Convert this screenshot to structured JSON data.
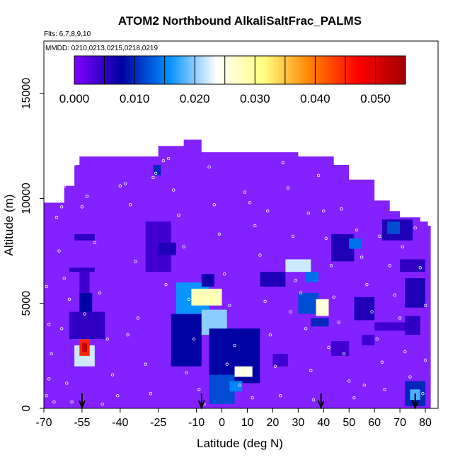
{
  "chart_data": {
    "type": "heatmap",
    "title": "ATOM2 Northbound AlkaliSaltFrac_PALMS",
    "subtitle_flights": "Flts: 6,7,8,9,10",
    "subtitle_dates": "MMDD: 0210,0213,0215,0218,0219",
    "xlabel": "Latitude (deg N)",
    "ylabel": "Altitude (m)",
    "xlim": [
      -70,
      85
    ],
    "ylim": [
      0,
      17500
    ],
    "x_ticks": [
      "-70",
      "-55",
      "-40",
      "-25",
      "-10",
      "0",
      "10",
      "20",
      "30",
      "40",
      "50",
      "60",
      "70",
      "80"
    ],
    "x_tick_values": [
      -70,
      -55,
      -40,
      -25,
      -10,
      0,
      10,
      20,
      30,
      40,
      50,
      60,
      70,
      80
    ],
    "y_ticks": [
      "0",
      "5000",
      "10000",
      "15000"
    ],
    "y_tick_values": [
      0,
      5000,
      10000,
      15000
    ],
    "colorbar": {
      "min": 0,
      "max": 0.055,
      "tick_labels": [
        "0.000",
        "0.010",
        "0.020",
        "0.030",
        "0.040",
        "0.050"
      ],
      "tick_values": [
        0,
        0.01,
        0.02,
        0.03,
        0.04,
        0.05
      ],
      "colors": [
        "#8000ff",
        "#0000a0",
        "#0090ff",
        "#ffffff",
        "#ffff80",
        "#ff8000",
        "#ff0000",
        "#a00000"
      ]
    },
    "background_value": 0.0,
    "background_color": "#8421ff",
    "coverage_profile": [
      {
        "lat": -70,
        "top": 9800
      },
      {
        "lat": -62,
        "top": 10600
      },
      {
        "lat": -58,
        "top": 11600
      },
      {
        "lat": -56,
        "top": 12000
      },
      {
        "lat": -35,
        "top": 12000
      },
      {
        "lat": -25,
        "top": 12500
      },
      {
        "lat": -15,
        "top": 12800
      },
      {
        "lat": -8,
        "top": 12200
      },
      {
        "lat": 20,
        "top": 12200
      },
      {
        "lat": 30,
        "top": 12000
      },
      {
        "lat": 44,
        "top": 11600
      },
      {
        "lat": 50,
        "top": 10900
      },
      {
        "lat": 60,
        "top": 9900
      },
      {
        "lat": 66,
        "top": 9400
      },
      {
        "lat": 70,
        "top": 9100
      },
      {
        "lat": 78,
        "top": 8900
      },
      {
        "lat": 81,
        "top": 8700
      }
    ],
    "cells": [
      {
        "lat": [
          -58,
          -50
        ],
        "alt": [
          2000,
          3000
        ],
        "v": 0.022
      },
      {
        "lat": [
          -56,
          -52
        ],
        "alt": [
          2500,
          3300
        ],
        "v": 0.045
      },
      {
        "lat": [
          -55,
          -53
        ],
        "alt": [
          2700,
          3100
        ],
        "v": 0.052
      },
      {
        "lat": [
          -57,
          -51
        ],
        "alt": [
          3300,
          4200
        ],
        "v": 0.02
      },
      {
        "lat": [
          -56,
          -51
        ],
        "alt": [
          4200,
          5500
        ],
        "v": 0.008
      },
      {
        "lat": [
          -60,
          -46
        ],
        "alt": [
          3300,
          4600
        ],
        "v": 0.005
      },
      {
        "lat": [
          -56,
          -52
        ],
        "alt": [
          5500,
          6500
        ],
        "v": 0.004
      },
      {
        "lat": [
          -60,
          -50
        ],
        "alt": [
          6500,
          6700
        ],
        "v": 0.005
      },
      {
        "lat": [
          -58,
          -50
        ],
        "alt": [
          8000,
          8300
        ],
        "v": 0.005
      },
      {
        "lat": [
          -30,
          -20
        ],
        "alt": [
          6500,
          8900
        ],
        "v": 0.004
      },
      {
        "lat": [
          -25,
          -18
        ],
        "alt": [
          7300,
          7900
        ],
        "v": 0.006
      },
      {
        "lat": [
          -27,
          -24
        ],
        "alt": [
          11100,
          11600
        ],
        "v": 0.01
      },
      {
        "lat": [
          -20,
          -8
        ],
        "alt": [
          2000,
          4500
        ],
        "v": 0.008
      },
      {
        "lat": [
          -18,
          -5
        ],
        "alt": [
          4500,
          6000
        ],
        "v": 0.016
      },
      {
        "lat": [
          -12,
          0
        ],
        "alt": [
          4900,
          5700
        ],
        "v": 0.028
      },
      {
        "lat": [
          -8,
          2
        ],
        "alt": [
          3500,
          4700
        ],
        "v": 0.02
      },
      {
        "lat": [
          -5,
          15
        ],
        "alt": [
          1200,
          3800
        ],
        "v": 0.008
      },
      {
        "lat": [
          -5,
          5
        ],
        "alt": [
          200,
          1600
        ],
        "v": 0.012
      },
      {
        "lat": [
          5,
          12
        ],
        "alt": [
          1500,
          2000
        ],
        "v": 0.025
      },
      {
        "lat": [
          3,
          8
        ],
        "alt": [
          800,
          1300
        ],
        "v": 0.015
      },
      {
        "lat": [
          -8,
          -3
        ],
        "alt": [
          5800,
          6400
        ],
        "v": 0.007
      },
      {
        "lat": [
          15,
          25
        ],
        "alt": [
          5800,
          6500
        ],
        "v": 0.006
      },
      {
        "lat": [
          20,
          26
        ],
        "alt": [
          2000,
          2600
        ],
        "v": 0.004
      },
      {
        "lat": [
          25,
          35
        ],
        "alt": [
          6500,
          7100
        ],
        "v": 0.022
      },
      {
        "lat": [
          30,
          38
        ],
        "alt": [
          4500,
          5500
        ],
        "v": 0.012
      },
      {
        "lat": [
          33,
          38
        ],
        "alt": [
          6000,
          6500
        ],
        "v": 0.014
      },
      {
        "lat": [
          37,
          42
        ],
        "alt": [
          4400,
          5200
        ],
        "v": 0.026
      },
      {
        "lat": [
          35,
          42
        ],
        "alt": [
          3900,
          4300
        ],
        "v": 0.01
      },
      {
        "lat": [
          43,
          52
        ],
        "alt": [
          7000,
          8300
        ],
        "v": 0.006
      },
      {
        "lat": [
          50,
          55
        ],
        "alt": [
          7600,
          8100
        ],
        "v": 0.014
      },
      {
        "lat": [
          52,
          60
        ],
        "alt": [
          4200,
          5300
        ],
        "v": 0.006
      },
      {
        "lat": [
          55,
          60
        ],
        "alt": [
          3000,
          3500
        ],
        "v": 0.004
      },
      {
        "lat": [
          43,
          50
        ],
        "alt": [
          2500,
          3200
        ],
        "v": 0.004
      },
      {
        "lat": [
          60,
          75
        ],
        "alt": [
          3700,
          4100
        ],
        "v": 0.004
      },
      {
        "lat": [
          63,
          75
        ],
        "alt": [
          8000,
          9000
        ],
        "v": 0.006
      },
      {
        "lat": [
          65,
          70
        ],
        "alt": [
          8300,
          8900
        ],
        "v": 0.012
      },
      {
        "lat": [
          70,
          80
        ],
        "alt": [
          6500,
          7100
        ],
        "v": 0.005
      },
      {
        "lat": [
          72,
          80
        ],
        "alt": [
          4800,
          6200
        ],
        "v": 0.006
      },
      {
        "lat": [
          72,
          78
        ],
        "alt": [
          3500,
          4400
        ],
        "v": 0.005
      },
      {
        "lat": [
          72,
          80
        ],
        "alt": [
          100,
          1300
        ],
        "v": 0.01
      },
      {
        "lat": [
          74,
          78
        ],
        "alt": [
          400,
          900
        ],
        "v": 0.018
      }
    ],
    "sample_points": [
      [
        -69,
        5800
      ],
      [
        -68,
        4000
      ],
      [
        -67,
        2600
      ],
      [
        -68,
        1400
      ],
      [
        -69,
        600
      ],
      [
        -66,
        300
      ],
      [
        -65,
        9100
      ],
      [
        -63,
        9600
      ],
      [
        -62,
        10600
      ],
      [
        -58,
        11600
      ],
      [
        -57,
        11800
      ],
      [
        -64,
        7500
      ],
      [
        -62,
        6200
      ],
      [
        -60,
        5200
      ],
      [
        -63,
        3800
      ],
      [
        -61,
        1200
      ],
      [
        -59,
        300
      ],
      [
        -55,
        9600
      ],
      [
        -53,
        10100
      ],
      [
        -50,
        7900
      ],
      [
        -48,
        5500
      ],
      [
        -45,
        3300
      ],
      [
        -43,
        1600
      ],
      [
        -41,
        600
      ],
      [
        -40,
        10600
      ],
      [
        -38,
        10700
      ],
      [
        -36,
        9700
      ],
      [
        -34,
        7000
      ],
      [
        -33,
        4300
      ],
      [
        -30,
        2100
      ],
      [
        -28,
        700
      ],
      [
        -27,
        11000
      ],
      [
        -26,
        11200
      ],
      [
        -23,
        11800
      ],
      [
        -21,
        11900
      ],
      [
        -19,
        10400
      ],
      [
        -17,
        9200
      ],
      [
        -15,
        7700
      ],
      [
        -13,
        5200
      ],
      [
        -11,
        3300
      ],
      [
        -9,
        900
      ],
      [
        -7,
        200
      ],
      [
        -5,
        11500
      ],
      [
        -3,
        9700
      ],
      [
        -1,
        8300
      ],
      [
        1,
        6400
      ],
      [
        3,
        4900
      ],
      [
        5,
        3000
      ],
      [
        7,
        1100
      ],
      [
        9,
        10300
      ],
      [
        11,
        9800
      ],
      [
        13,
        8700
      ],
      [
        15,
        7300
      ],
      [
        17,
        5100
      ],
      [
        19,
        3500
      ],
      [
        21,
        2000
      ],
      [
        23,
        600
      ],
      [
        24,
        11700
      ],
      [
        26,
        10500
      ],
      [
        28,
        8200
      ],
      [
        29,
        6100
      ],
      [
        31,
        5500
      ],
      [
        33,
        3800
      ],
      [
        35,
        1800
      ],
      [
        36,
        400
      ],
      [
        38,
        11100
      ],
      [
        40,
        9400
      ],
      [
        41,
        8100
      ],
      [
        43,
        6800
      ],
      [
        44,
        5300
      ],
      [
        46,
        4100
      ],
      [
        48,
        2600
      ],
      [
        50,
        1300
      ],
      [
        52,
        500
      ],
      [
        53,
        8500
      ],
      [
        55,
        7200
      ],
      [
        57,
        5900
      ],
      [
        59,
        4600
      ],
      [
        61,
        3300
      ],
      [
        63,
        2200
      ],
      [
        64,
        900
      ],
      [
        66,
        6800
      ],
      [
        68,
        5400
      ],
      [
        70,
        4300
      ],
      [
        72,
        2700
      ],
      [
        74,
        1500
      ],
      [
        76,
        8600
      ],
      [
        78,
        6700
      ],
      [
        80,
        4900
      ],
      [
        80,
        2300
      ],
      [
        79,
        700
      ],
      [
        -54,
        4500
      ],
      [
        -51,
        2400
      ],
      [
        -47,
        200
      ],
      [
        -37,
        3500
      ],
      [
        -22,
        5900
      ],
      [
        -14,
        1700
      ],
      [
        2,
        2100
      ],
      [
        12,
        500
      ],
      [
        18,
        9400
      ],
      [
        27,
        4600
      ],
      [
        34,
        9300
      ],
      [
        42,
        2900
      ],
      [
        47,
        9500
      ],
      [
        56,
        1100
      ],
      [
        62,
        8200
      ],
      [
        71,
        7700
      ]
    ],
    "arrow_markers": [
      -55,
      -8,
      39,
      76
    ]
  }
}
